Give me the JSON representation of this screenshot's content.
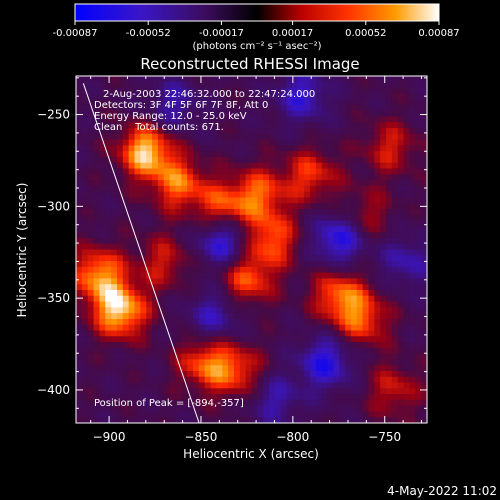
{
  "colorbar": {
    "ticks": [
      "-0.00087",
      "-0.00052",
      "-0.00017",
      "0.00017",
      "0.00052",
      "0.00087"
    ],
    "tick_values": [
      -0.00087,
      -0.00052,
      -0.00017,
      0.00017,
      0.00052,
      0.00087
    ],
    "min": -0.00087,
    "max": 0.00087,
    "unit_label": "(photons cm⁻² s⁻¹ asec⁻²)",
    "colors": [
      "#0000ff",
      "#000000",
      "#ff2000",
      "#ff8c00",
      "#ffffff"
    ]
  },
  "chart_data": {
    "type": "heatmap",
    "title": "Reconstructed RHESSI Image",
    "xlabel": "Heliocentric X (arcsec)",
    "ylabel": "Heliocentric Y (arcsec)",
    "xlim": [
      -918,
      -727
    ],
    "ylim": [
      -418,
      -229
    ],
    "xticks": [
      -900,
      -850,
      -800,
      -750
    ],
    "yticks": [
      -250,
      -300,
      -350,
      -400
    ],
    "xtick_labels": [
      "−900",
      "−850",
      "−800",
      "−750"
    ],
    "ytick_labels": [
      "−250",
      "−300",
      "−350",
      "−400"
    ],
    "grid": false,
    "limb_line": {
      "x": [
        -914,
        -851
      ],
      "y": [
        -233,
        -418
      ]
    },
    "annotations": [
      "2-Aug-2003 22:46:32.000 to 22:47:24.000",
      "Detectors: 3F 4F 5F 6F 7F 8F, Att 0",
      "Energy Range: 12.0 - 25.0 keV",
      "Clean    Total counts: 671."
    ],
    "peak_label": "Position of Peak = [-894,-357]",
    "peak": {
      "x": -894,
      "y": -357
    },
    "sources": [
      {
        "x": -880,
        "y": -270,
        "amp": 0.00085
      },
      {
        "x": -894,
        "y": -357,
        "amp": 0.00087
      },
      {
        "x": -906,
        "y": -337,
        "amp": 0.0007
      },
      {
        "x": -862,
        "y": -288,
        "amp": 0.0006
      },
      {
        "x": -838,
        "y": -302,
        "amp": 0.00062
      },
      {
        "x": -818,
        "y": -293,
        "amp": 0.00055
      },
      {
        "x": -812,
        "y": -318,
        "amp": 0.0006
      },
      {
        "x": -825,
        "y": -340,
        "amp": 0.00058
      },
      {
        "x": -790,
        "y": -283,
        "amp": 0.0005
      },
      {
        "x": -775,
        "y": -348,
        "amp": 0.0006
      },
      {
        "x": -762,
        "y": -362,
        "amp": 0.00055
      },
      {
        "x": -848,
        "y": -385,
        "amp": 0.00058
      },
      {
        "x": -830,
        "y": -390,
        "amp": 0.00052
      },
      {
        "x": -870,
        "y": -330,
        "amp": 0.0004
      },
      {
        "x": -747,
        "y": -268,
        "amp": 0.00042
      },
      {
        "x": -745,
        "y": -400,
        "amp": 0.0004
      },
      {
        "x": -760,
        "y": -305,
        "amp": 0.00035
      }
    ],
    "negative_regions": [
      {
        "x": -838,
        "y": -318,
        "amp": -0.0007
      },
      {
        "x": -795,
        "y": -240,
        "amp": -0.0005
      },
      {
        "x": -775,
        "y": -318,
        "amp": -0.00065
      },
      {
        "x": -782,
        "y": -385,
        "amp": -0.0006
      },
      {
        "x": -810,
        "y": -405,
        "amp": -0.0004
      },
      {
        "x": -865,
        "y": -245,
        "amp": -0.0004
      },
      {
        "x": -843,
        "y": -360,
        "amp": -0.00045
      },
      {
        "x": -738,
        "y": -330,
        "amp": -0.0004
      }
    ]
  },
  "footer": {
    "timestamp": "4-May-2022 11:02"
  }
}
